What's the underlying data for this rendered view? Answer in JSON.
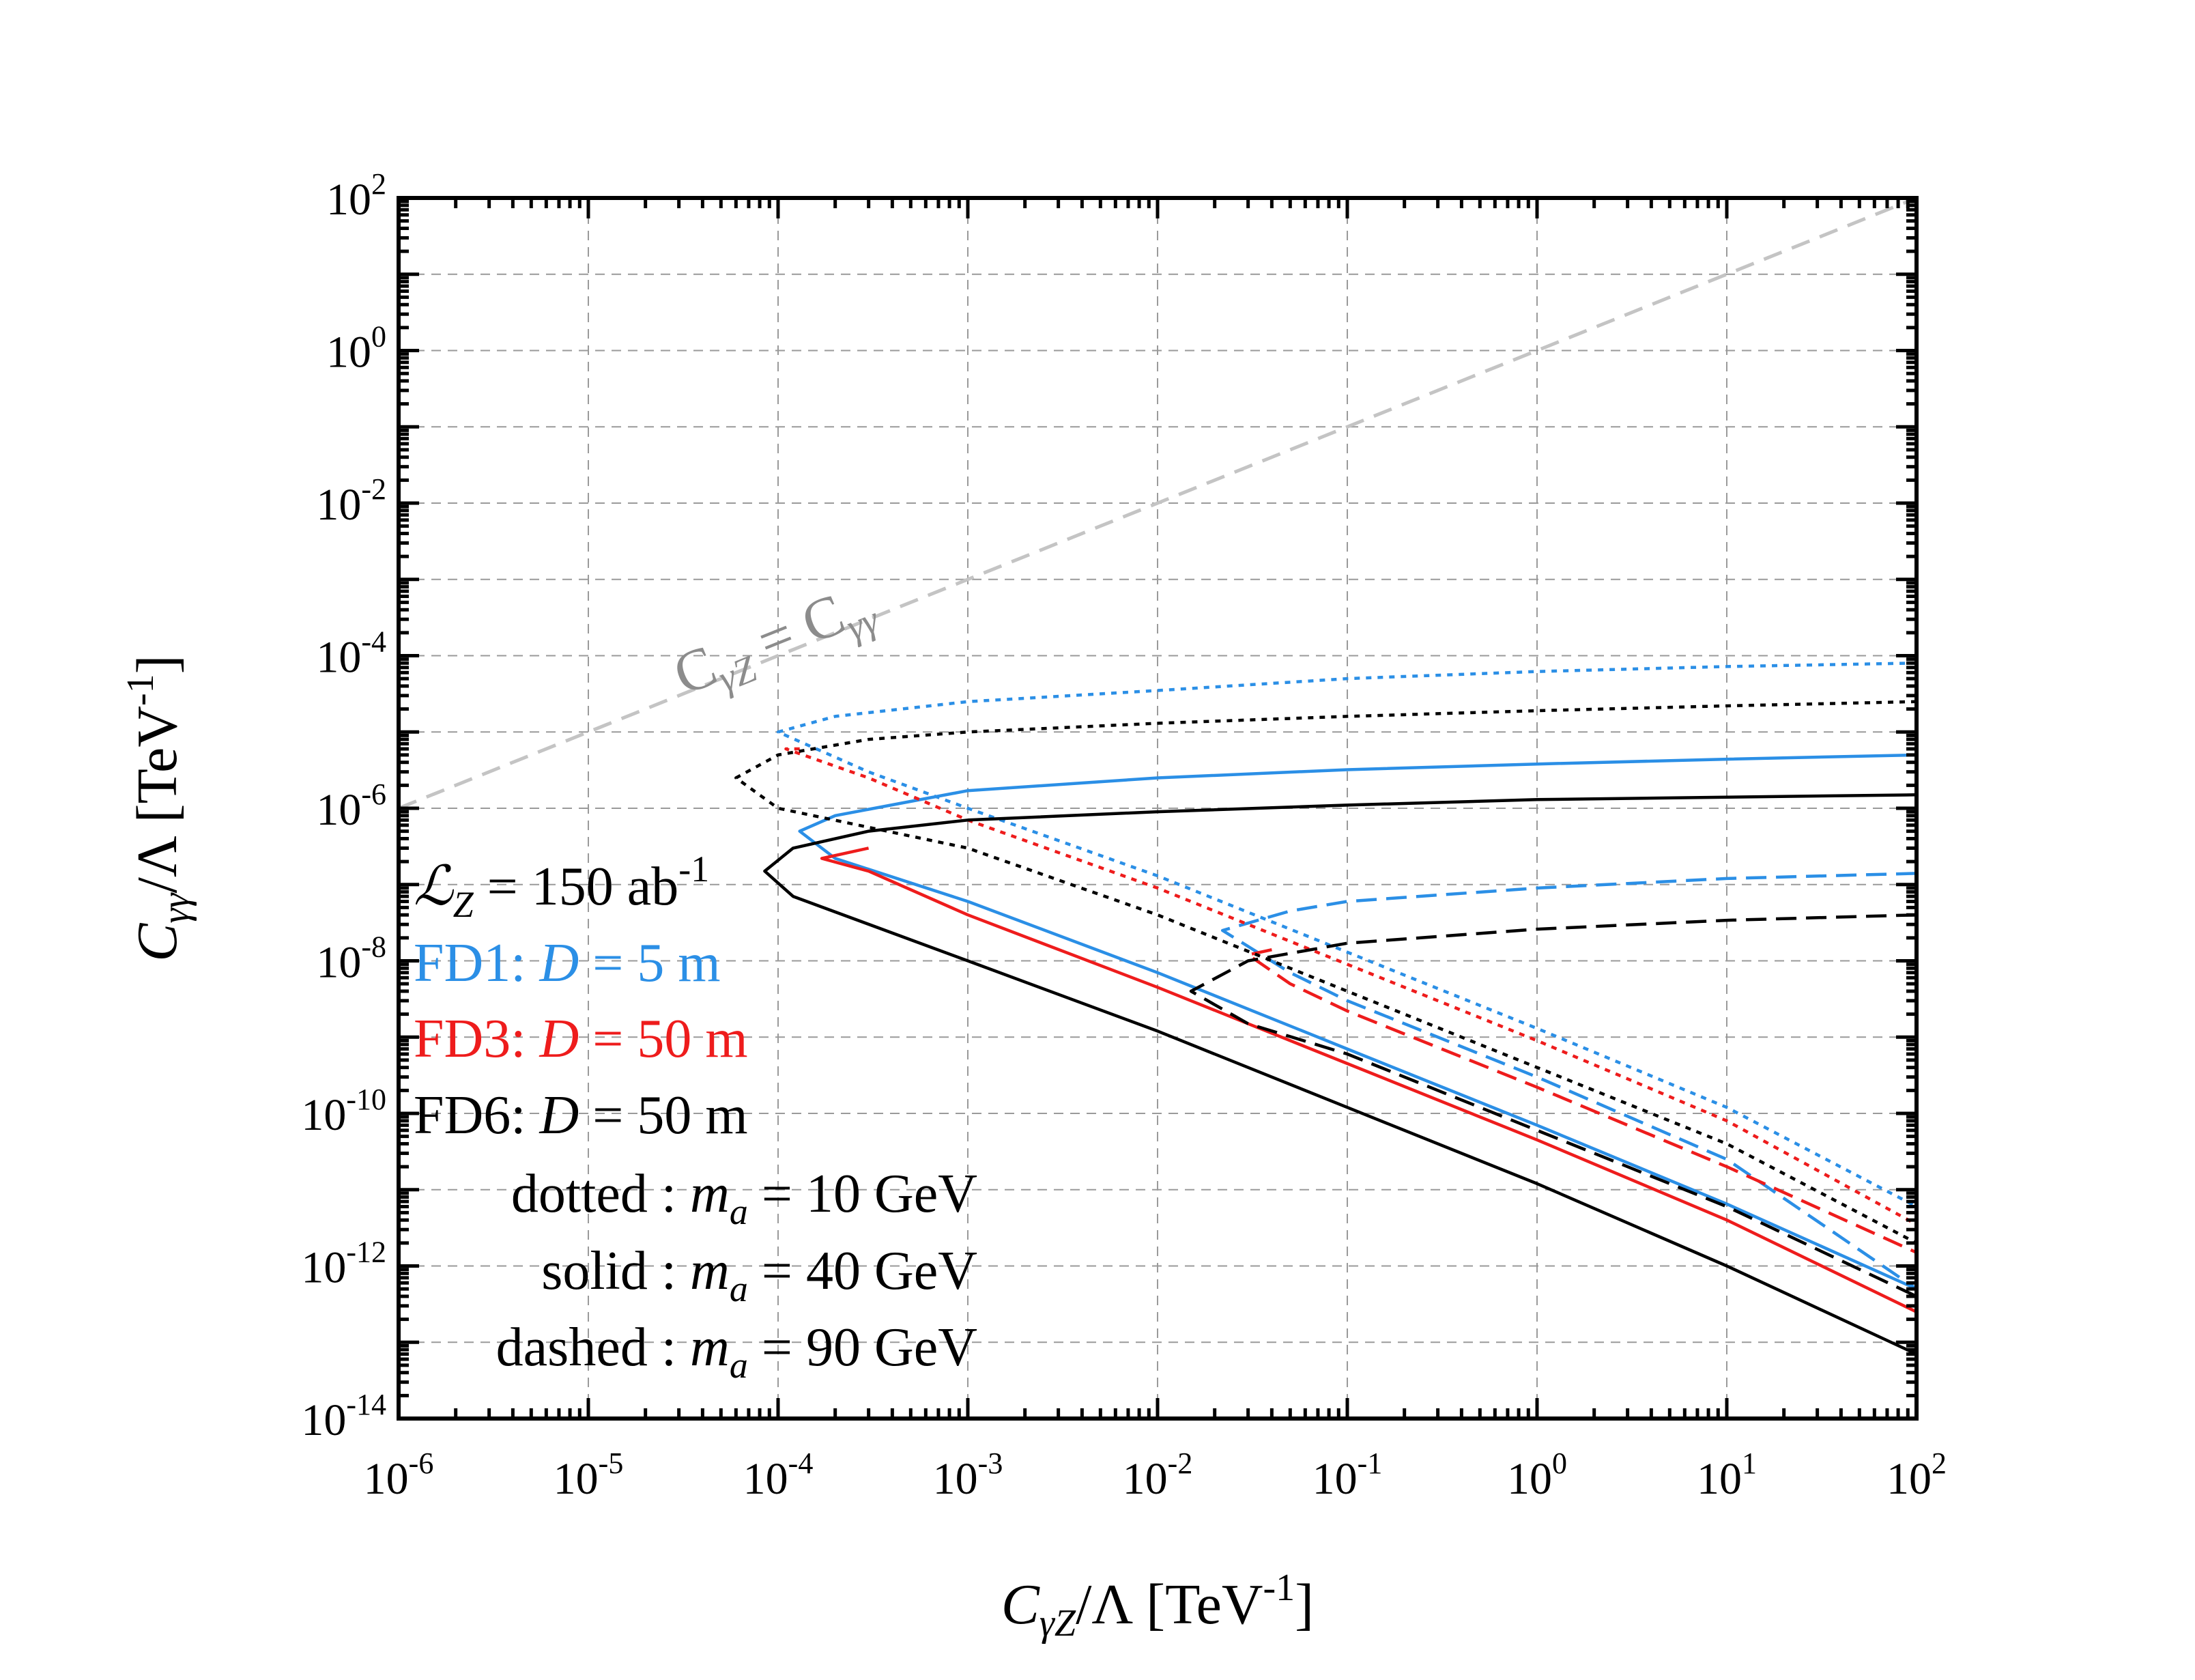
{
  "chart_data": {
    "type": "line",
    "title": "",
    "xlabel": {
      "main": "C",
      "sub": "γZ",
      "rest": "/Λ [TeV",
      "sup": "-1",
      "end": "]"
    },
    "ylabel": {
      "main": "C",
      "sub": "γγ",
      "rest": "/Λ [TeV",
      "sup": "-1",
      "end": "]"
    },
    "x_scale": "log",
    "y_scale": "log",
    "xlim": [
      1e-06,
      100
    ],
    "ylim": [
      1e-14,
      100
    ],
    "grid": true,
    "x_ticks": [
      {
        "value": 1e-06,
        "base": "10",
        "exp": "-6"
      },
      {
        "value": 1e-05,
        "base": "10",
        "exp": "-5"
      },
      {
        "value": 0.0001,
        "base": "10",
        "exp": "-4"
      },
      {
        "value": 0.001,
        "base": "10",
        "exp": "-3"
      },
      {
        "value": 0.01,
        "base": "10",
        "exp": "-2"
      },
      {
        "value": 0.1,
        "base": "10",
        "exp": "-1"
      },
      {
        "value": 1,
        "base": "10",
        "exp": "0"
      },
      {
        "value": 10,
        "base": "10",
        "exp": "1"
      },
      {
        "value": 100,
        "base": "10",
        "exp": "2"
      }
    ],
    "y_ticks": [
      {
        "value": 1e-14,
        "base": "10",
        "exp": "-14"
      },
      {
        "value": 1e-12,
        "base": "10",
        "exp": "-12"
      },
      {
        "value": 1e-10,
        "base": "10",
        "exp": "-10"
      },
      {
        "value": 1e-08,
        "base": "10",
        "exp": "-8"
      },
      {
        "value": 1e-06,
        "base": "10",
        "exp": "-6"
      },
      {
        "value": 0.0001,
        "base": "10",
        "exp": "-4"
      },
      {
        "value": 0.01,
        "base": "10",
        "exp": "-2"
      },
      {
        "value": 1,
        "base": "10",
        "exp": "0"
      },
      {
        "value": 100,
        "base": "10",
        "exp": "2"
      }
    ],
    "diagonal_label": {
      "left": "C",
      "left_sub": "γZ",
      "eq": " = ",
      "right": "C",
      "right_sub": "γγ"
    },
    "legend": [
      {
        "parts": [
          {
            "t": "ℒ",
            "it": true
          },
          {
            "t": "Z",
            "sub": true,
            "it": true
          },
          {
            "t": " = 150 ab"
          },
          {
            "t": "-1",
            "sup": true
          }
        ],
        "color": "#000000"
      },
      {
        "parts": [
          {
            "t": "FD1: "
          },
          {
            "t": "D",
            "it": true
          },
          {
            "t": " =   5 m"
          }
        ],
        "color": "#2b8fe6"
      },
      {
        "parts": [
          {
            "t": "FD3: "
          },
          {
            "t": "D",
            "it": true
          },
          {
            "t": " = 50 m"
          }
        ],
        "color": "#ee1c1c"
      },
      {
        "parts": [
          {
            "t": "FD6: "
          },
          {
            "t": "D",
            "it": true
          },
          {
            "t": " = 50 m"
          }
        ],
        "color": "#000000"
      },
      {
        "parts": [
          {
            "t": "dotted : "
          },
          {
            "t": "m",
            "it": true
          },
          {
            "t": "a",
            "sub": true,
            "it": true
          },
          {
            "t": " = 10 GeV"
          }
        ],
        "color": "#000000"
      },
      {
        "parts": [
          {
            "t": "solid : "
          },
          {
            "t": "m",
            "it": true
          },
          {
            "t": "a",
            "sub": true,
            "it": true
          },
          {
            "t": " = 40 GeV"
          }
        ],
        "color": "#000000"
      },
      {
        "parts": [
          {
            "t": "dashed : "
          },
          {
            "t": "m",
            "it": true
          },
          {
            "t": "a",
            "sub": true,
            "it": true
          },
          {
            "t": " = 90 GeV"
          }
        ],
        "color": "#000000"
      }
    ],
    "series": [
      {
        "detector": "FD1",
        "mass": "10 GeV",
        "style": "dotted",
        "color": "#2b8fe6",
        "upper": [
          [
            0.0001,
            1e-05
          ],
          [
            0.0002,
            1.6e-05
          ],
          [
            0.001,
            2.5e-05
          ],
          [
            0.01,
            3.5e-05
          ],
          [
            0.1,
            5e-05
          ],
          [
            1,
            6.2e-05
          ],
          [
            10,
            7.2e-05
          ],
          [
            100,
            8e-05
          ]
        ],
        "lower": [
          [
            0.0001,
            1e-05
          ],
          [
            0.0003,
            3e-06
          ],
          [
            0.001,
            1e-06
          ],
          [
            0.01,
            1.3e-07
          ],
          [
            0.1,
            1.3e-08
          ],
          [
            1,
            1.3e-09
          ],
          [
            10,
            1.2e-10
          ],
          [
            100,
            6e-12
          ]
        ]
      },
      {
        "detector": "FD1",
        "mass": "40 GeV",
        "style": "solid",
        "color": "#2b8fe6",
        "upper": [
          [
            0.00013,
            5e-07
          ],
          [
            0.0002,
            8e-07
          ],
          [
            0.001,
            1.7e-06
          ],
          [
            0.01,
            2.5e-06
          ],
          [
            0.1,
            3.2e-06
          ],
          [
            1,
            3.8e-06
          ],
          [
            10,
            4.4e-06
          ],
          [
            100,
            5e-06
          ]
        ],
        "lower": [
          [
            0.00013,
            5e-07
          ],
          [
            0.0002,
            2.2e-07
          ],
          [
            0.001,
            6e-08
          ],
          [
            0.01,
            7e-09
          ],
          [
            0.1,
            7e-10
          ],
          [
            1,
            7e-11
          ],
          [
            10,
            6.5e-12
          ],
          [
            100,
            5e-13
          ]
        ]
      },
      {
        "detector": "FD1",
        "mass": "90 GeV",
        "style": "dashed",
        "color": "#2b8fe6",
        "upper": [
          [
            0.022,
            2.5e-08
          ],
          [
            0.05,
            4.5e-08
          ],
          [
            0.1,
            6e-08
          ],
          [
            1,
            9e-08
          ],
          [
            10,
            1.2e-07
          ],
          [
            100,
            1.4e-07
          ]
        ],
        "lower": [
          [
            0.022,
            2.5e-08
          ],
          [
            0.05,
            7e-09
          ],
          [
            0.1,
            3e-09
          ],
          [
            1,
            3e-10
          ],
          [
            10,
            2.5e-11
          ],
          [
            100,
            5e-13
          ]
        ]
      },
      {
        "detector": "FD3",
        "mass": "10 GeV",
        "style": "dotted",
        "color": "#ee1c1c",
        "upper": [
          [
            0.00011,
            6e-06
          ],
          [
            0.00013,
            6e-06
          ]
        ],
        "lower": [
          [
            0.00013,
            6e-06
          ],
          [
            0.0003,
            2.5e-06
          ],
          [
            0.001,
            7e-07
          ],
          [
            0.01,
            9e-08
          ],
          [
            0.1,
            9e-09
          ],
          [
            1,
            9e-10
          ],
          [
            10,
            8e-11
          ],
          [
            100,
            3.5e-12
          ]
        ]
      },
      {
        "detector": "FD3",
        "mass": "40 GeV",
        "style": "solid",
        "color": "#ee1c1c",
        "upper": [
          [
            0.00017,
            2.2e-07
          ],
          [
            0.0003,
            3e-07
          ]
        ],
        "lower": [
          [
            0.00017,
            2.2e-07
          ],
          [
            0.0003,
            1.5e-07
          ],
          [
            0.001,
            4e-08
          ],
          [
            0.01,
            4.5e-09
          ],
          [
            0.1,
            4.5e-10
          ],
          [
            1,
            4.5e-11
          ],
          [
            10,
            4e-12
          ],
          [
            100,
            2.5e-13
          ]
        ]
      },
      {
        "detector": "FD3",
        "mass": "90 GeV",
        "style": "dashed",
        "color": "#ee1c1c",
        "upper": [
          [
            0.03,
            1.2e-08
          ],
          [
            0.04,
            1.4e-08
          ]
        ],
        "lower": [
          [
            0.03,
            1.2e-08
          ],
          [
            0.05,
            5e-09
          ],
          [
            0.1,
            2.2e-09
          ],
          [
            1,
            2.2e-10
          ],
          [
            10,
            2e-11
          ],
          [
            100,
            1.5e-12
          ]
        ]
      },
      {
        "detector": "FD6",
        "mass": "10 GeV",
        "style": "dotted",
        "color": "#000000",
        "upper": [
          [
            6e-05,
            2.5e-06
          ],
          [
            0.0001,
            5e-06
          ],
          [
            0.0003,
            8e-06
          ],
          [
            0.001,
            1e-05
          ],
          [
            0.01,
            1.3e-05
          ],
          [
            0.1,
            1.6e-05
          ],
          [
            1,
            1.9e-05
          ],
          [
            10,
            2.2e-05
          ],
          [
            100,
            2.5e-05
          ]
        ],
        "lower": [
          [
            6e-05,
            2.5e-06
          ],
          [
            0.0001,
            1e-06
          ],
          [
            0.001,
            3e-07
          ],
          [
            0.01,
            4e-08
          ],
          [
            0.1,
            4e-09
          ],
          [
            1,
            4e-10
          ],
          [
            10,
            4e-11
          ],
          [
            100,
            2e-12
          ]
        ]
      },
      {
        "detector": "FD6",
        "mass": "40 GeV",
        "style": "solid",
        "color": "#000000",
        "upper": [
          [
            8.5e-05,
            1.5e-07
          ],
          [
            0.00012,
            3e-07
          ],
          [
            0.0003,
            5e-07
          ],
          [
            0.001,
            7e-07
          ],
          [
            0.01,
            9e-07
          ],
          [
            0.1,
            1.1e-06
          ],
          [
            1,
            1.3e-06
          ],
          [
            10,
            1.4e-06
          ],
          [
            100,
            1.5e-06
          ]
        ],
        "lower": [
          [
            8.5e-05,
            1.5e-07
          ],
          [
            0.00012,
            7e-08
          ],
          [
            0.001,
            1e-08
          ],
          [
            0.01,
            1.2e-09
          ],
          [
            0.1,
            1.2e-10
          ],
          [
            1,
            1.2e-11
          ],
          [
            10,
            1e-12
          ],
          [
            100,
            7e-14
          ]
        ]
      },
      {
        "detector": "FD6",
        "mass": "90 GeV",
        "style": "dashed",
        "color": "#000000",
        "upper": [
          [
            0.015,
            4e-09
          ],
          [
            0.03,
            1e-08
          ],
          [
            0.1,
            1.7e-08
          ],
          [
            1,
            2.6e-08
          ],
          [
            10,
            3.4e-08
          ],
          [
            100,
            4e-08
          ]
        ],
        "lower": [
          [
            0.015,
            4e-09
          ],
          [
            0.03,
            1.5e-09
          ],
          [
            0.1,
            6e-10
          ],
          [
            1,
            6e-11
          ],
          [
            10,
            6e-12
          ],
          [
            100,
            4e-13
          ]
        ]
      }
    ]
  }
}
